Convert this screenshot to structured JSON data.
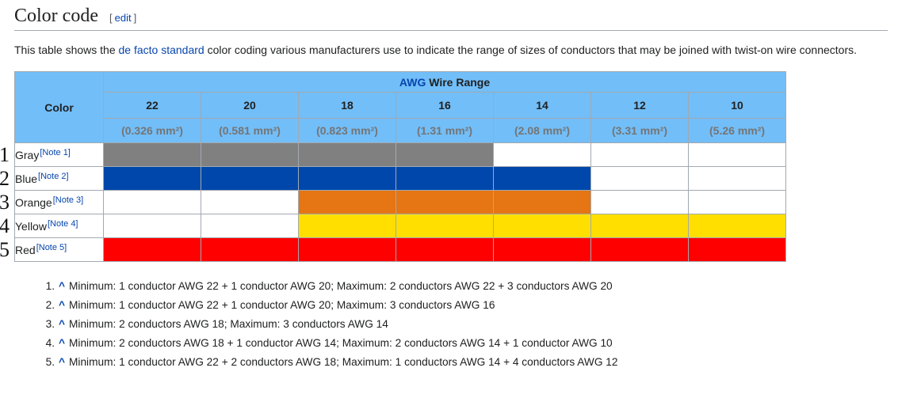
{
  "page": {
    "title": "Color code",
    "edit_bracket_open": "[",
    "edit_label": "edit",
    "edit_bracket_close": "]",
    "intro": {
      "before_link": "This table shows the ",
      "link": "de facto standard",
      "after_link": " color coding various manufacturers use to indicate the range of sizes of conductors that may be joined with twist-on wire connectors."
    }
  },
  "table": {
    "corner_header": "Color",
    "group_header": {
      "link": "AWG",
      "rest": " Wire Range"
    },
    "columns": [
      {
        "awg": "22",
        "mm2": "(0.326 mm²)"
      },
      {
        "awg": "20",
        "mm2": "(0.581 mm²)"
      },
      {
        "awg": "18",
        "mm2": "(0.823 mm²)"
      },
      {
        "awg": "16",
        "mm2": "(1.31 mm²)"
      },
      {
        "awg": "14",
        "mm2": "(2.08 mm²)"
      },
      {
        "awg": "12",
        "mm2": "(3.31 mm²)"
      },
      {
        "awg": "10",
        "mm2": "(5.26 mm²)"
      }
    ],
    "rows": [
      {
        "marker": "1",
        "label": "Gray",
        "note_ref": "[Note 1]",
        "color": "#808080",
        "span_start": 0,
        "span_end": 3
      },
      {
        "marker": "2",
        "label": "Blue",
        "note_ref": "[Note 2]",
        "color": "#0047ab",
        "span_start": 0,
        "span_end": 4
      },
      {
        "marker": "3",
        "label": "Orange",
        "note_ref": "[Note 3]",
        "color": "#e57613",
        "span_start": 2,
        "span_end": 4
      },
      {
        "marker": "4",
        "label": "Yellow",
        "note_ref": "[Note 4]",
        "color": "#ffdf00",
        "span_start": 2,
        "span_end": 6
      },
      {
        "marker": "5",
        "label": "Red",
        "note_ref": "[Note 5]",
        "color": "#fe0000",
        "span_start": 0,
        "span_end": 6
      }
    ]
  },
  "notes": [
    {
      "num": "1.",
      "caret": "^",
      "text": "Minimum: 1 conductor AWG 22 + 1 conductor AWG 20; Maximum: 2 conductors AWG 22 + 3 conductors AWG 20"
    },
    {
      "num": "2.",
      "caret": "^",
      "text": "Minimum: 1 conductor AWG 22 + 1 conductor AWG 20; Maximum: 3 conductors AWG 16"
    },
    {
      "num": "3.",
      "caret": "^",
      "text": "Minimum: 2 conductors AWG 18; Maximum: 3 conductors AWG 14"
    },
    {
      "num": "4.",
      "caret": "^",
      "text": "Minimum: 2 conductors AWG 18 + 1 conductor AWG 14; Maximum: 2 conductors AWG 14 + 1 conductor AWG 10"
    },
    {
      "num": "5.",
      "caret": "^",
      "text": "Minimum: 1 conductor AWG 22 + 2 conductors AWG 18; Maximum: 1 conductors AWG 14 + 4 conductors AWG 12"
    }
  ],
  "colors": {
    "header_bg": "#72bef8",
    "table_border": "#a2a9b1",
    "link_blue": "#0645ad",
    "body_text": "#202122",
    "mm2_muted": "#757575",
    "gray_row": "#808080",
    "blue_row": "#0047ab",
    "orange_row": "#e57613",
    "yellow_row": "#ffdf00",
    "red_row": "#fe0000"
  }
}
